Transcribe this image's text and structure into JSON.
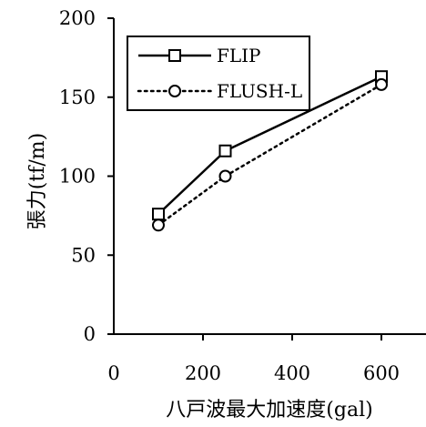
{
  "chart_data": {
    "type": "line",
    "xlabel": "八戸波最大加速度(gal)",
    "ylabel": "張力(tf/m)",
    "xlim": [
      0,
      700
    ],
    "ylim": [
      0,
      200
    ],
    "xticks": [
      "0",
      "200",
      "400",
      "600"
    ],
    "yticks": [
      "0",
      "50",
      "100",
      "150",
      "200"
    ],
    "grid": false,
    "legend_position": "top-left",
    "series": [
      {
        "name": "FLIP",
        "marker": "square",
        "line_style": "solid",
        "color": "#000000",
        "points": [
          [
            100,
            76
          ],
          [
            250,
            116
          ],
          [
            600,
            163
          ]
        ]
      },
      {
        "name": "FLUSH-L",
        "marker": "circle",
        "line_style": "dotted",
        "color": "#000000",
        "points": [
          [
            100,
            69
          ],
          [
            250,
            100
          ],
          [
            600,
            158
          ]
        ]
      }
    ]
  }
}
